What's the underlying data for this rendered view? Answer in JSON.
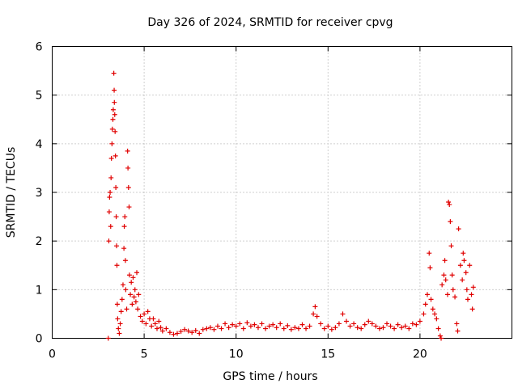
{
  "chart_data": {
    "type": "scatter",
    "title": "Day 326 of 2024, SRMTID for receiver cpvg",
    "xlabel": "GPS time / hours",
    "ylabel": "SRMTID / TECUs",
    "xlim": [
      0,
      25
    ],
    "ylim": [
      0,
      6
    ],
    "xticks": [
      0,
      5,
      10,
      15,
      20
    ],
    "yticks": [
      0,
      1,
      2,
      3,
      4,
      5,
      6
    ],
    "grid": true,
    "marker": "+",
    "color": "#e00000",
    "series": [
      {
        "name": "SRMTID",
        "points": [
          [
            3.05,
            0.0
          ],
          [
            3.08,
            2.0
          ],
          [
            3.1,
            2.6
          ],
          [
            3.12,
            2.9
          ],
          [
            3.15,
            3.0
          ],
          [
            3.18,
            2.3
          ],
          [
            3.2,
            3.3
          ],
          [
            3.22,
            3.7
          ],
          [
            3.25,
            4.0
          ],
          [
            3.27,
            4.3
          ],
          [
            3.3,
            4.5
          ],
          [
            3.32,
            4.7
          ],
          [
            3.35,
            5.45
          ],
          [
            3.37,
            5.1
          ],
          [
            3.38,
            4.85
          ],
          [
            3.4,
            4.6
          ],
          [
            3.42,
            4.25
          ],
          [
            3.44,
            3.75
          ],
          [
            3.46,
            3.1
          ],
          [
            3.48,
            2.5
          ],
          [
            3.5,
            1.9
          ],
          [
            3.52,
            1.5
          ],
          [
            3.54,
            0.7
          ],
          [
            3.56,
            0.4
          ],
          [
            3.6,
            0.2
          ],
          [
            3.65,
            0.1
          ],
          [
            3.7,
            0.3
          ],
          [
            3.75,
            0.55
          ],
          [
            3.8,
            0.8
          ],
          [
            3.85,
            1.1
          ],
          [
            3.9,
            1.85
          ],
          [
            3.92,
            2.3
          ],
          [
            3.95,
            2.5
          ],
          [
            3.98,
            1.6
          ],
          [
            4.0,
            1.0
          ],
          [
            4.05,
            0.6
          ],
          [
            4.1,
            3.85
          ],
          [
            4.12,
            3.5
          ],
          [
            4.15,
            3.1
          ],
          [
            4.18,
            2.7
          ],
          [
            4.2,
            1.3
          ],
          [
            4.25,
            0.9
          ],
          [
            4.3,
            1.15
          ],
          [
            4.35,
            0.7
          ],
          [
            4.4,
            1.25
          ],
          [
            4.45,
            0.85
          ],
          [
            4.5,
            1.0
          ],
          [
            4.55,
            0.75
          ],
          [
            4.6,
            1.35
          ],
          [
            4.65,
            0.6
          ],
          [
            4.7,
            0.9
          ],
          [
            4.8,
            0.45
          ],
          [
            4.9,
            0.35
          ],
          [
            5.0,
            0.5
          ],
          [
            5.1,
            0.3
          ],
          [
            5.2,
            0.55
          ],
          [
            5.3,
            0.4
          ],
          [
            5.4,
            0.25
          ],
          [
            5.5,
            0.4
          ],
          [
            5.6,
            0.3
          ],
          [
            5.7,
            0.2
          ],
          [
            5.8,
            0.35
          ],
          [
            5.9,
            0.22
          ],
          [
            6.0,
            0.15
          ],
          [
            6.2,
            0.2
          ],
          [
            6.4,
            0.12
          ],
          [
            6.6,
            0.08
          ],
          [
            6.8,
            0.1
          ],
          [
            7.0,
            0.14
          ],
          [
            7.2,
            0.18
          ],
          [
            7.4,
            0.15
          ],
          [
            7.6,
            0.12
          ],
          [
            7.8,
            0.16
          ],
          [
            8.0,
            0.1
          ],
          [
            8.2,
            0.18
          ],
          [
            8.4,
            0.2
          ],
          [
            8.6,
            0.22
          ],
          [
            8.8,
            0.18
          ],
          [
            9.0,
            0.25
          ],
          [
            9.2,
            0.2
          ],
          [
            9.4,
            0.3
          ],
          [
            9.6,
            0.22
          ],
          [
            9.8,
            0.28
          ],
          [
            10.0,
            0.25
          ],
          [
            10.2,
            0.3
          ],
          [
            10.4,
            0.2
          ],
          [
            10.6,
            0.32
          ],
          [
            10.8,
            0.25
          ],
          [
            11.0,
            0.28
          ],
          [
            11.2,
            0.22
          ],
          [
            11.4,
            0.3
          ],
          [
            11.6,
            0.2
          ],
          [
            11.8,
            0.25
          ],
          [
            12.0,
            0.28
          ],
          [
            12.2,
            0.22
          ],
          [
            12.4,
            0.3
          ],
          [
            12.6,
            0.2
          ],
          [
            12.8,
            0.26
          ],
          [
            13.0,
            0.18
          ],
          [
            13.2,
            0.22
          ],
          [
            13.4,
            0.2
          ],
          [
            13.6,
            0.28
          ],
          [
            13.8,
            0.2
          ],
          [
            14.0,
            0.25
          ],
          [
            14.2,
            0.5
          ],
          [
            14.3,
            0.65
          ],
          [
            14.4,
            0.45
          ],
          [
            14.6,
            0.3
          ],
          [
            14.8,
            0.2
          ],
          [
            15.0,
            0.25
          ],
          [
            15.2,
            0.18
          ],
          [
            15.4,
            0.22
          ],
          [
            15.6,
            0.3
          ],
          [
            15.8,
            0.5
          ],
          [
            16.0,
            0.35
          ],
          [
            16.2,
            0.25
          ],
          [
            16.4,
            0.3
          ],
          [
            16.6,
            0.22
          ],
          [
            16.8,
            0.2
          ],
          [
            17.0,
            0.28
          ],
          [
            17.2,
            0.35
          ],
          [
            17.4,
            0.3
          ],
          [
            17.6,
            0.25
          ],
          [
            17.8,
            0.2
          ],
          [
            18.0,
            0.22
          ],
          [
            18.2,
            0.3
          ],
          [
            18.4,
            0.25
          ],
          [
            18.6,
            0.2
          ],
          [
            18.8,
            0.28
          ],
          [
            19.0,
            0.22
          ],
          [
            19.2,
            0.25
          ],
          [
            19.4,
            0.2
          ],
          [
            19.6,
            0.3
          ],
          [
            19.8,
            0.28
          ],
          [
            20.0,
            0.35
          ],
          [
            20.2,
            0.5
          ],
          [
            20.3,
            0.7
          ],
          [
            20.4,
            0.9
          ],
          [
            20.5,
            1.75
          ],
          [
            20.55,
            1.45
          ],
          [
            20.6,
            0.8
          ],
          [
            20.7,
            0.6
          ],
          [
            20.8,
            0.5
          ],
          [
            20.9,
            0.4
          ],
          [
            21.0,
            0.2
          ],
          [
            21.1,
            0.05
          ],
          [
            21.15,
            0.0
          ],
          [
            21.2,
            1.1
          ],
          [
            21.3,
            1.3
          ],
          [
            21.35,
            1.6
          ],
          [
            21.4,
            1.2
          ],
          [
            21.5,
            0.9
          ],
          [
            21.55,
            2.8
          ],
          [
            21.6,
            2.75
          ],
          [
            21.65,
            2.4
          ],
          [
            21.7,
            1.9
          ],
          [
            21.75,
            1.3
          ],
          [
            21.8,
            1.0
          ],
          [
            21.9,
            0.85
          ],
          [
            22.0,
            0.3
          ],
          [
            22.05,
            0.15
          ],
          [
            22.1,
            2.25
          ],
          [
            22.2,
            1.5
          ],
          [
            22.3,
            1.2
          ],
          [
            22.35,
            1.75
          ],
          [
            22.4,
            1.6
          ],
          [
            22.5,
            1.35
          ],
          [
            22.55,
            1.0
          ],
          [
            22.6,
            0.8
          ],
          [
            22.7,
            1.5
          ],
          [
            22.8,
            0.9
          ],
          [
            22.85,
            0.6
          ],
          [
            22.9,
            1.05
          ]
        ]
      }
    ]
  }
}
